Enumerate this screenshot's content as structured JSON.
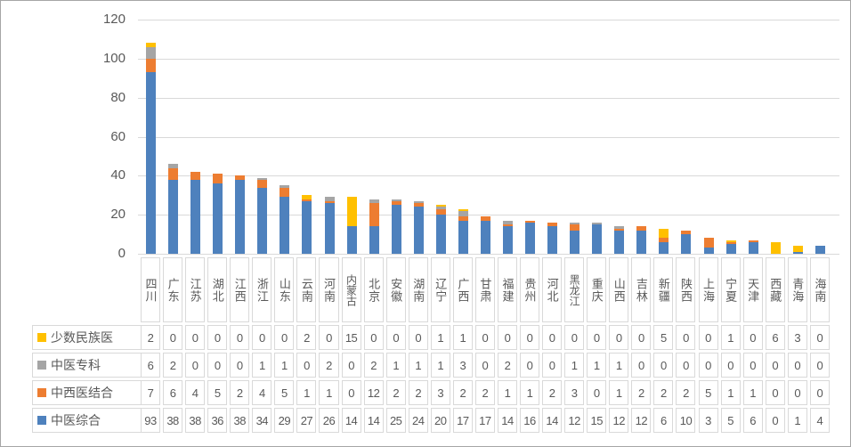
{
  "chart": {
    "background": "#FFFFFF",
    "frame_border_color": "#A6A6A6",
    "grid_color": "#D9D9D9",
    "text_color": "#595959",
    "table_border_color": "#D9D9D9"
  },
  "chart_data": {
    "type": "bar",
    "stacked": true,
    "title": "",
    "xlabel": "",
    "ylabel": "",
    "ylim": [
      0,
      120
    ],
    "yticks": [
      0,
      20,
      40,
      60,
      80,
      100,
      120
    ],
    "grid": true,
    "legend_position": "data-table-left",
    "categories": [
      "四川",
      "广东",
      "江苏",
      "湖北",
      "江西",
      "浙江",
      "山东",
      "云南",
      "河南",
      "内蒙古",
      "北京",
      "安徽",
      "湖南",
      "辽宁",
      "广西",
      "甘肃",
      "福建",
      "贵州",
      "河北",
      "黑龙江",
      "重庆",
      "山西",
      "吉林",
      "新疆",
      "陕西",
      "上海",
      "宁夏",
      "天津",
      "西藏",
      "青海",
      "海南"
    ],
    "series": [
      {
        "name": "少数民族医",
        "color": "#FFC000",
        "values": [
          2,
          0,
          0,
          0,
          0,
          0,
          0,
          2,
          0,
          15,
          0,
          0,
          0,
          1,
          1,
          0,
          0,
          0,
          0,
          0,
          0,
          0,
          0,
          5,
          0,
          0,
          1,
          0,
          6,
          3,
          0
        ]
      },
      {
        "name": "中医专科",
        "color": "#A5A5A5",
        "values": [
          6,
          2,
          0,
          0,
          0,
          1,
          1,
          0,
          2,
          0,
          2,
          1,
          1,
          1,
          3,
          0,
          2,
          0,
          0,
          1,
          1,
          1,
          0,
          0,
          0,
          0,
          0,
          0,
          0,
          0,
          0
        ]
      },
      {
        "name": "中西医结合",
        "color": "#ED7D31",
        "values": [
          7,
          6,
          4,
          5,
          2,
          4,
          5,
          1,
          1,
          0,
          12,
          2,
          2,
          3,
          2,
          2,
          1,
          1,
          2,
          3,
          0,
          1,
          2,
          2,
          2,
          5,
          1,
          1,
          0,
          0,
          0
        ]
      },
      {
        "name": "中医综合",
        "color": "#4E81BD",
        "values": [
          93,
          38,
          38,
          36,
          38,
          34,
          29,
          27,
          26,
          14,
          14,
          25,
          24,
          20,
          17,
          17,
          14,
          16,
          14,
          12,
          15,
          12,
          12,
          6,
          10,
          3,
          5,
          6,
          0,
          1,
          4
        ]
      }
    ],
    "stack_order_bottom_to_top": [
      "中医综合",
      "中西医结合",
      "中医专科",
      "少数民族医"
    ]
  }
}
